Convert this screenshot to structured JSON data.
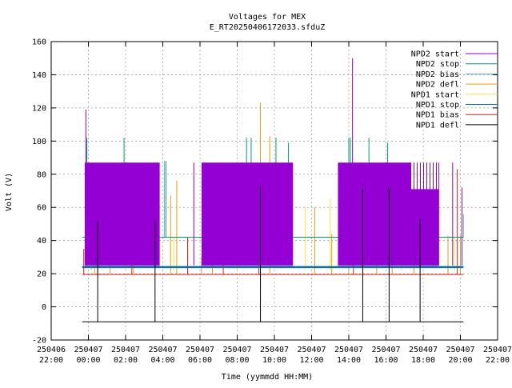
{
  "chart_data": {
    "type": "line",
    "title": "Voltages for MEX",
    "subtitle": "E_RT20250406172033.sfduZ",
    "xlabel": "Time (yymmdd HH:MM)",
    "ylabel": "Volt (V)",
    "xlim": [
      "250406 22:00",
      "250407 22:00"
    ],
    "ylim": [
      -20,
      160
    ],
    "grid": true,
    "legend_position": "top-right",
    "x_ticks": [
      {
        "date": "250406",
        "time": "22:00"
      },
      {
        "date": "250407",
        "time": "00:00"
      },
      {
        "date": "250407",
        "time": "02:00"
      },
      {
        "date": "250407",
        "time": "04:00"
      },
      {
        "date": "250407",
        "time": "06:00"
      },
      {
        "date": "250407",
        "time": "08:00"
      },
      {
        "date": "250407",
        "time": "10:00"
      },
      {
        "date": "250407",
        "time": "12:00"
      },
      {
        "date": "250407",
        "time": "14:00"
      },
      {
        "date": "250407",
        "time": "16:00"
      },
      {
        "date": "250407",
        "time": "18:00"
      },
      {
        "date": "250407",
        "time": "20:00"
      },
      {
        "date": "250407",
        "time": "22:00"
      }
    ],
    "y_ticks": [
      "-20",
      "0",
      "20",
      "40",
      "60",
      "80",
      "100",
      "120",
      "140",
      "160"
    ],
    "series": [
      {
        "name": "NPD2 start",
        "color": "#9400d3",
        "baseline": 25,
        "blocks": [
          {
            "from": "250406 23:48",
            "to": "250407 03:50",
            "top": 87
          },
          {
            "from": "250407 06:05",
            "to": "250407 11:00",
            "top": 87
          },
          {
            "from": "250407 13:25",
            "to": "250407 18:50",
            "top": 87,
            "step": {
              "from": "250407 17:20",
              "top": 71
            }
          }
        ],
        "spikes": [
          {
            "x": "250406 23:52",
            "y": 119
          },
          {
            "x": "250407 05:40",
            "y": 87
          },
          {
            "x": "250407 14:12",
            "y": 150
          },
          {
            "x": "250407 18:50",
            "y": 87
          },
          {
            "x": "250407 19:35",
            "y": 87
          },
          {
            "x": "250407 20:05",
            "y": 72
          }
        ]
      },
      {
        "name": "NPD2 stop",
        "color": "#009e73",
        "baseline": 42,
        "level_range": [
          "250406 23:40",
          "250407 20:10"
        ],
        "spikes": [
          {
            "x": "250406 23:55",
            "y": 102
          },
          {
            "x": "250407 01:55",
            "y": 102
          },
          {
            "x": "250407 04:10",
            "y": 88
          },
          {
            "x": "250407 08:30",
            "y": 102
          },
          {
            "x": "250407 08:45",
            "y": 102
          },
          {
            "x": "250407 10:05",
            "y": 102
          },
          {
            "x": "250407 10:45",
            "y": 99
          },
          {
            "x": "250407 14:00",
            "y": 102
          },
          {
            "x": "250407 14:05",
            "y": 102
          },
          {
            "x": "250407 15:05",
            "y": 102
          },
          {
            "x": "250407 16:05",
            "y": 99
          }
        ]
      },
      {
        "name": "NPD2 bias",
        "color": "#56b4e9",
        "baseline": 42,
        "spikes": [
          {
            "x": "250406 23:45",
            "y": 42
          },
          {
            "x": "250407 00:40",
            "y": 72
          },
          {
            "x": "250407 04:05",
            "y": 88
          },
          {
            "x": "250407 06:15",
            "y": 66
          },
          {
            "x": "250407 12:55",
            "y": 42
          },
          {
            "x": "250407 20:10",
            "y": 56
          }
        ]
      },
      {
        "name": "NPD2 defl",
        "color": "#e69f00",
        "baseline": 20,
        "spikes": [
          {
            "x": "250407 00:20",
            "y": 83
          },
          {
            "x": "250407 01:10",
            "y": 62
          },
          {
            "x": "250407 02:25",
            "y": 80
          },
          {
            "x": "250407 04:25",
            "y": 67
          },
          {
            "x": "250407 04:45",
            "y": 76
          },
          {
            "x": "250407 06:05",
            "y": 30
          },
          {
            "x": "250407 06:40",
            "y": 78
          },
          {
            "x": "250407 09:15",
            "y": 123
          },
          {
            "x": "250407 09:45",
            "y": 103
          },
          {
            "x": "250407 12:10",
            "y": 60
          },
          {
            "x": "250407 13:05",
            "y": 44
          },
          {
            "x": "250407 14:00",
            "y": 31
          },
          {
            "x": "250407 15:30",
            "y": 37
          },
          {
            "x": "250407 16:20",
            "y": 75
          },
          {
            "x": "250407 17:30",
            "y": 55
          },
          {
            "x": "250407 19:20",
            "y": 43
          },
          {
            "x": "250407 20:00",
            "y": 43
          }
        ]
      },
      {
        "name": "NPD1 start",
        "color": "#f0e442",
        "baseline": 22,
        "spikes": [
          {
            "x": "250407 00:10",
            "y": 42
          },
          {
            "x": "250407 02:00",
            "y": 42
          },
          {
            "x": "250407 04:35",
            "y": 42
          },
          {
            "x": "250407 08:00",
            "y": 42
          },
          {
            "x": "250407 11:40",
            "y": 60
          },
          {
            "x": "250407 13:00",
            "y": 65
          },
          {
            "x": "250407 16:50",
            "y": 42
          },
          {
            "x": "250407 19:40",
            "y": 42
          }
        ]
      },
      {
        "name": "NPD1 stop",
        "color": "#0072b2",
        "baseline": 24,
        "level_range": [
          "250406 23:40",
          "250407 20:10"
        ]
      },
      {
        "name": "NPD1 bias",
        "color": "#e51e10",
        "baseline": 19.5,
        "level_range": [
          "250406 23:40",
          "250407 20:10"
        ],
        "spikes": [
          {
            "x": "250406 23:45",
            "y": 35
          },
          {
            "x": "250407 00:30",
            "y": 41
          },
          {
            "x": "250407 02:20",
            "y": 66
          },
          {
            "x": "250407 05:20",
            "y": 42
          },
          {
            "x": "250407 07:15",
            "y": 41
          },
          {
            "x": "250407 09:10",
            "y": 42
          },
          {
            "x": "250407 14:15",
            "y": 26
          },
          {
            "x": "250407 19:50",
            "y": 83
          }
        ]
      },
      {
        "name": "NPD1 defl",
        "color": "#000000",
        "baseline": -9,
        "level_range": [
          "250406 23:40",
          "250407 20:10"
        ],
        "spikes": [
          {
            "x": "250407 00:30",
            "y": 52
          },
          {
            "x": "250407 03:35",
            "y": 52
          },
          {
            "x": "250407 09:15",
            "y": 73
          },
          {
            "x": "250407 14:45",
            "y": 72
          },
          {
            "x": "250407 16:10",
            "y": 72
          },
          {
            "x": "250407 17:50",
            "y": 53
          }
        ]
      }
    ]
  }
}
